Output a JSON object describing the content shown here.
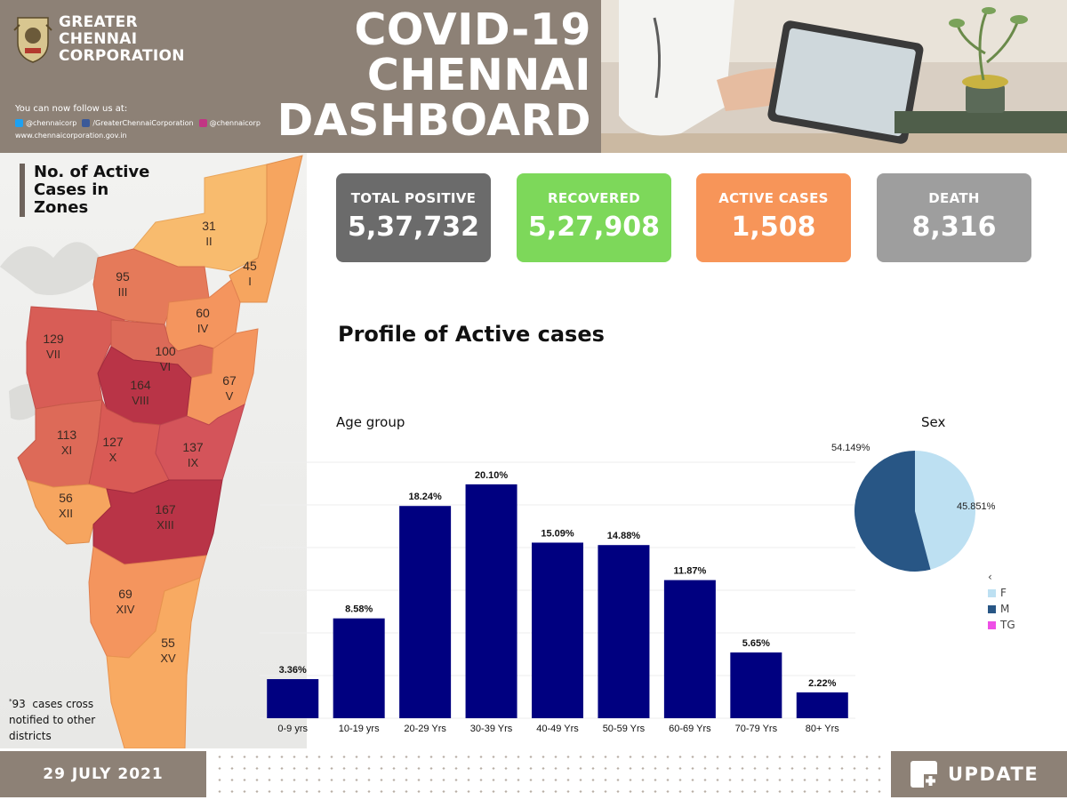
{
  "header": {
    "org_line1": "GREATER",
    "org_line2": "CHENNAI",
    "org_line3": "CORPORATION",
    "follow_text": "You can now follow us at:",
    "twitter": "@chennaicorp",
    "facebook": "/GreaterChennaiCorporation",
    "instagram": "@chennaicorp",
    "website": "www.chennaicorporation.gov.in",
    "title_line1": "COVID-19",
    "title_line2": "CHENNAI",
    "title_line3": "DASHBOARD"
  },
  "map": {
    "title_line1": "No. of Active",
    "title_line2": "Cases in",
    "title_line3": "Zones",
    "zones": [
      {
        "numeral": "I",
        "cases": 45
      },
      {
        "numeral": "II",
        "cases": 31
      },
      {
        "numeral": "III",
        "cases": 95
      },
      {
        "numeral": "IV",
        "cases": 60
      },
      {
        "numeral": "V",
        "cases": 67
      },
      {
        "numeral": "VI",
        "cases": 100
      },
      {
        "numeral": "VII",
        "cases": 129
      },
      {
        "numeral": "VIII",
        "cases": 164
      },
      {
        "numeral": "IX",
        "cases": 137
      },
      {
        "numeral": "X",
        "cases": 127
      },
      {
        "numeral": "XI",
        "cases": 113
      },
      {
        "numeral": "XII",
        "cases": 56
      },
      {
        "numeral": "XIII",
        "cases": 167
      },
      {
        "numeral": "XIV",
        "cases": 69
      },
      {
        "numeral": "XV",
        "cases": 55
      }
    ],
    "note_marker": "*",
    "note_count": "93",
    "note_line1": "cases cross",
    "note_line2": "notified to other",
    "note_line3": "districts"
  },
  "stats": {
    "total_label": "TOTAL POSITIVE",
    "total_value": "5,37,732",
    "recovered_label": "RECOVERED",
    "recovered_value": "5,27,908",
    "active_label": "ACTIVE CASES",
    "active_value": "1,508",
    "death_label": "DEATH",
    "death_value": "8,316"
  },
  "chart_title": "Profile of Active cases",
  "colors": {
    "header_bg": "#8d8176",
    "total": "#6b6b6b",
    "recovered": "#7dd85a",
    "active": "#f79559",
    "death": "#9e9e9e",
    "bar": "#000080",
    "pie_f": "#bde0f2",
    "pie_m": "#285685",
    "pie_tg": "#ee4fe6"
  },
  "chart_data": [
    {
      "type": "bar",
      "title": "Age group",
      "categories": [
        "0-9 yrs",
        "10-19 yrs",
        "20-29 Yrs",
        "30-39 Yrs",
        "40-49 Yrs",
        "50-59 Yrs",
        "60-69 Yrs",
        "70-79 Yrs",
        "80+ Yrs"
      ],
      "values": [
        3.36,
        8.58,
        18.24,
        20.1,
        15.09,
        14.88,
        11.87,
        5.65,
        2.22
      ],
      "labels": [
        "3.36%",
        "8.58%",
        "18.24%",
        "20.10%",
        "15.09%",
        "14.88%",
        "11.87%",
        "5.65%",
        "2.22%"
      ],
      "unit": "%",
      "ylim": [
        0,
        22
      ]
    },
    {
      "type": "pie",
      "title": "Sex",
      "slices": [
        {
          "name": "F",
          "value": 45.851,
          "label": "45.851%"
        },
        {
          "name": "M",
          "value": 54.149,
          "label": "54.149%"
        }
      ],
      "legend_title": "‹",
      "legend": [
        "F",
        "M",
        "TG"
      ]
    }
  ],
  "footer": {
    "date": "29 JULY 2021",
    "update_label": "UPDATE"
  }
}
